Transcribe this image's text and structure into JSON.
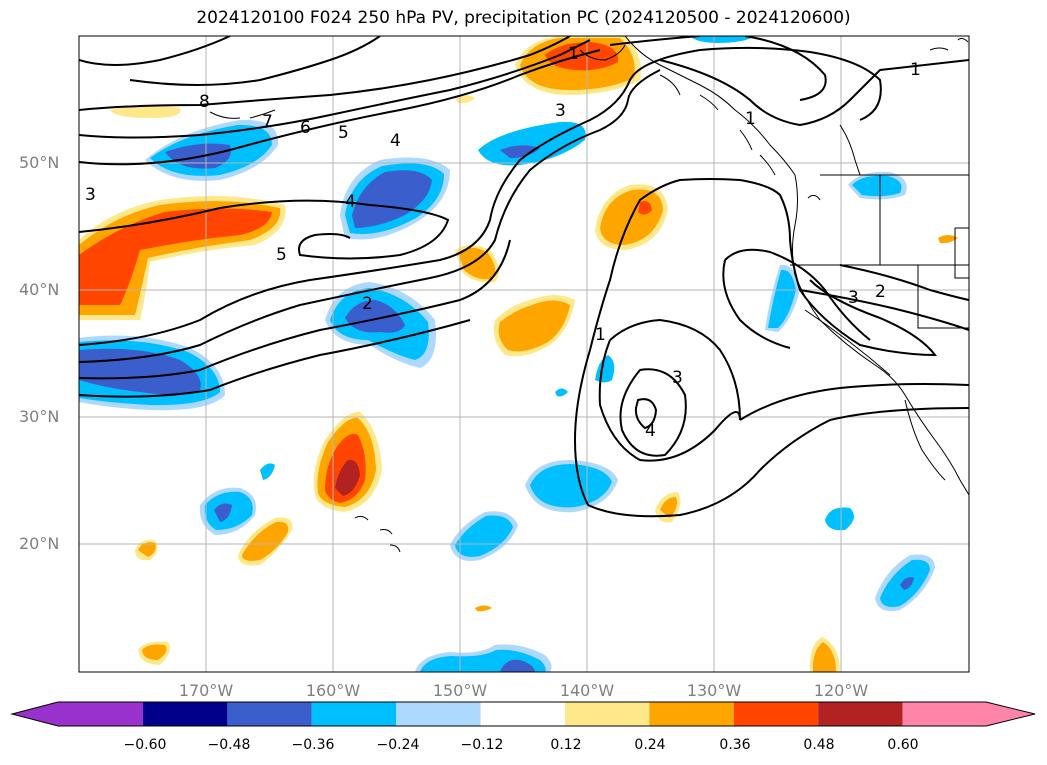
{
  "title": "2024120100 F024 250 hPa PV, precipitation PC (2024120500 - 2024120600)",
  "lat_labels": [
    "50°N",
    "40°N",
    "30°N",
    "20°N"
  ],
  "lon_labels": [
    "170°W",
    "160°W",
    "150°W",
    "140°W",
    "130°W",
    "120°W"
  ],
  "colorbar": {
    "ticks": [
      "−0.60",
      "−0.48",
      "−0.36",
      "−0.24",
      "−0.12",
      "0.12",
      "0.24",
      "0.36",
      "0.48",
      "0.60"
    ],
    "colors": [
      "#9932cc",
      "#00008b",
      "#3a5fcd",
      "#00bfff",
      "#add8ff",
      "#ffffff",
      "#ffe88a",
      "#ffa500",
      "#ff4500",
      "#b22222",
      "#ff85a8"
    ]
  },
  "contour_labels": [
    "8",
    "7",
    "6",
    "5",
    "4",
    "3",
    "2",
    "1",
    "4",
    "5",
    "2",
    "3",
    "1",
    "1",
    "3",
    "4",
    "2",
    "3",
    "3",
    "1",
    "1"
  ]
}
